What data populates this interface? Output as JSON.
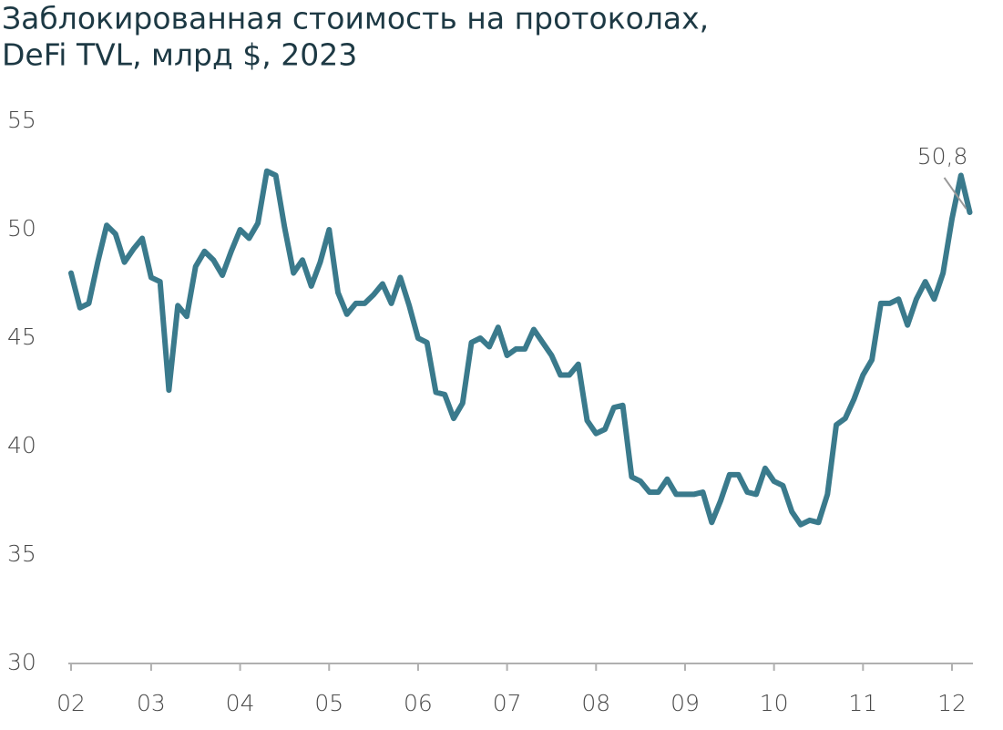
{
  "chart_data": {
    "type": "line",
    "title": [
      "Заблокированная стоимость на протоколах,",
      "DeFi TVL, млрд $, 2023"
    ],
    "categories": [
      "02",
      null,
      null,
      null,
      null,
      null,
      null,
      null,
      null,
      "03",
      null,
      null,
      null,
      null,
      null,
      null,
      null,
      null,
      null,
      "04",
      null,
      null,
      null,
      null,
      null,
      null,
      null,
      null,
      null,
      "05",
      null,
      null,
      null,
      null,
      null,
      null,
      null,
      null,
      null,
      "06",
      null,
      null,
      null,
      null,
      null,
      null,
      null,
      null,
      null,
      "07",
      null,
      null,
      null,
      null,
      null,
      null,
      null,
      null,
      null,
      "08",
      null,
      null,
      null,
      null,
      null,
      null,
      null,
      null,
      null,
      "09",
      null,
      null,
      null,
      null,
      null,
      null,
      null,
      null,
      null,
      "10",
      null,
      null,
      null,
      null,
      null,
      null,
      null,
      null,
      null,
      "11",
      null,
      null,
      null,
      null,
      null,
      null,
      null,
      null,
      null,
      "12",
      null,
      null
    ],
    "values": [
      48.0,
      46.4,
      46.6,
      48.5,
      50.2,
      49.8,
      48.5,
      49.1,
      49.6,
      47.8,
      47.6,
      42.6,
      46.5,
      46.0,
      48.3,
      49.0,
      48.6,
      47.9,
      49.0,
      50.0,
      49.6,
      50.3,
      52.7,
      52.5,
      50.1,
      48.0,
      48.6,
      47.4,
      48.5,
      50.0,
      47.1,
      46.1,
      46.6,
      46.6,
      47.0,
      47.5,
      46.6,
      47.8,
      46.5,
      45.0,
      44.8,
      42.5,
      42.4,
      41.3,
      42.0,
      44.8,
      45.0,
      44.6,
      45.5,
      44.2,
      44.5,
      44.5,
      45.4,
      44.8,
      44.2,
      43.3,
      43.3,
      43.8,
      41.2,
      40.6,
      40.8,
      41.8,
      41.9,
      38.6,
      38.4,
      37.9,
      37.9,
      38.5,
      37.8,
      37.8,
      37.8,
      37.9,
      36.5,
      37.5,
      38.7,
      38.7,
      37.9,
      37.8,
      39.0,
      38.4,
      38.2,
      37.0,
      36.4,
      36.6,
      36.5,
      37.8,
      41.0,
      41.3,
      42.2,
      43.3,
      44.0,
      46.6,
      46.6,
      46.8,
      45.6,
      46.8,
      47.6,
      46.8,
      48.0,
      50.5,
      52.5,
      50.8
    ],
    "value_labels": [
      null,
      null,
      null,
      null,
      null,
      null,
      null,
      null,
      null,
      null,
      null,
      null,
      null,
      null,
      null,
      null,
      null,
      null,
      null,
      null,
      null,
      null,
      null,
      null,
      null,
      null,
      null,
      null,
      null,
      null,
      null,
      null,
      null,
      null,
      null,
      null,
      null,
      null,
      null,
      null,
      null,
      null,
      null,
      null,
      null,
      null,
      null,
      null,
      null,
      null,
      null,
      null,
      null,
      null,
      null,
      null,
      null,
      null,
      null,
      null,
      null,
      null,
      null,
      null,
      null,
      null,
      null,
      null,
      null,
      null,
      null,
      null,
      null,
      null,
      null,
      null,
      null,
      null,
      null,
      null,
      null,
      null,
      null,
      null,
      null,
      null,
      null,
      null,
      null,
      null,
      null,
      null,
      null,
      null,
      null,
      null,
      null,
      null,
      null,
      null,
      null,
      "50,8"
    ],
    "color": "#3a7a8c",
    "ylim": [
      30,
      55
    ],
    "yticks": [
      30,
      35,
      40,
      45,
      50,
      55
    ],
    "grid": false
  }
}
